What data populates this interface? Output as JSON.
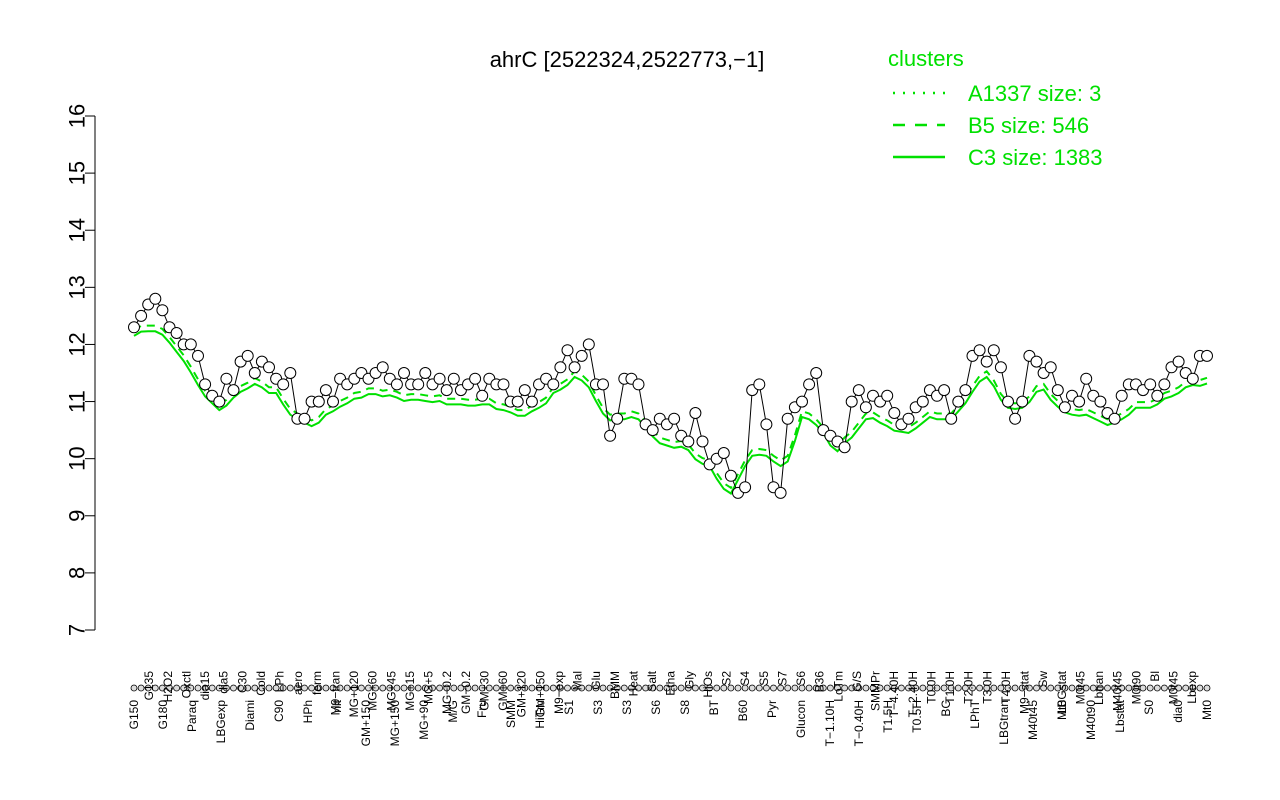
{
  "chart_data": {
    "type": "line",
    "title": "ahrC [2522324,2522773,−1]",
    "xlabel": "",
    "ylabel": "",
    "ylim": [
      7,
      16
    ],
    "yticks": [
      7,
      8,
      9,
      10,
      11,
      12,
      13,
      14,
      15,
      16
    ],
    "grid": false,
    "legend": {
      "title": "clusters",
      "placement": "top-right",
      "color": "#00e000",
      "entries": [
        {
          "label": "A1337 size: 3",
          "style": "dotted"
        },
        {
          "label": "B5 size: 546",
          "style": "dashed"
        },
        {
          "label": "C3 size: 1383",
          "style": "solid"
        }
      ]
    },
    "x_labels_upper": [
      "G135",
      "H2O2",
      "Oxctl",
      "dia15",
      "dia5",
      "C30",
      "Cold",
      "LPh",
      "aero",
      "ferm",
      "M9−tran",
      "MG+120",
      "MG+60",
      "MG+45",
      "MG+15",
      "MG+5",
      "MG−0.2",
      "GM−0.2",
      "GM+30",
      "GM+60",
      "GM+120",
      "GM+150",
      "M9−exp",
      "Mal",
      "Glu",
      "BMM",
      "Heat",
      "Salt",
      "Etha",
      "Gly",
      "HiOs",
      "S2",
      "S4",
      "S5",
      "S7",
      "S6",
      "B36",
      "LoTm",
      "G/S",
      "SMMPr",
      "T−4.40H",
      "T−2.40H",
      "T0.0H",
      "T1.0H",
      "T2.0H",
      "T3.0H",
      "T4.0H",
      "M9−stat",
      "Sw",
      "LBGstat",
      "M0t45",
      "Lbtran",
      "M40t45",
      "M0t90",
      "Bl",
      "M0t45",
      "Lbexp"
    ],
    "x_labels_lower": [
      "G150",
      "G180",
      "Paraq",
      "LBGexp",
      "Diami",
      "C90",
      "HPh",
      "nit",
      "GM+150",
      "MG+150",
      "MG+90",
      "M/G",
      "Fru",
      "SMM",
      "HiTm",
      "S1",
      "S3",
      "S3",
      "S6",
      "S8",
      "BT",
      "B60",
      "Pyr",
      "Glucon",
      "T−1.10H",
      "T−0.40H",
      "T1.5H",
      "T0.5H",
      "BC",
      "LPhT",
      "LBGtran",
      "M40t45",
      "Mt0",
      "M40t90",
      "Lbstat",
      "S0",
      "dia0",
      "Mt0"
    ],
    "series": [
      {
        "name": "",
        "style": "solid",
        "values": [
          12.3,
          12.5,
          12.7,
          12.8,
          12.6,
          12.3,
          12.2,
          12.0,
          12.0,
          11.8,
          11.3,
          11.1,
          11.0,
          11.4,
          11.2,
          11.7,
          11.8,
          11.5,
          11.7,
          11.6,
          11.4,
          11.3,
          11.5,
          10.7,
          10.7,
          11.0,
          11.0,
          11.2,
          11.0,
          11.4,
          11.3,
          11.4,
          11.5,
          11.4,
          11.5,
          11.6,
          11.4,
          11.3,
          11.5,
          11.3,
          11.3,
          11.5,
          11.3,
          11.4,
          11.2,
          11.4,
          11.2,
          11.3,
          11.4,
          11.1,
          11.4,
          11.3,
          11.3,
          11.0,
          11.0,
          11.2,
          11.0,
          11.3,
          11.4,
          11.3,
          11.6,
          11.9,
          11.6,
          11.8,
          12.0,
          11.3,
          11.3,
          10.4,
          10.7,
          11.4,
          11.4,
          11.3,
          10.6,
          10.5,
          10.7,
          10.6,
          10.7,
          10.4,
          10.3,
          10.8,
          10.3,
          9.9,
          10.0,
          10.1,
          9.7,
          9.4,
          9.5,
          11.2,
          11.3,
          10.6,
          9.5,
          9.4,
          10.7,
          10.9,
          11.0,
          11.3,
          11.5,
          10.5,
          10.4,
          10.3,
          10.2,
          11.0,
          11.2,
          10.9,
          11.1,
          11.0,
          11.1,
          10.8,
          10.6,
          10.7,
          10.9,
          11.0,
          11.2,
          11.1,
          11.2,
          10.7,
          11.0,
          11.2,
          11.8,
          11.9,
          11.7,
          11.9,
          11.6,
          11.0,
          10.7,
          11.0,
          11.8,
          11.7,
          11.5,
          11.6,
          11.2,
          10.9,
          11.1,
          11.0,
          11.4,
          11.1,
          11.0,
          10.8,
          10.7,
          11.1,
          11.3,
          11.3,
          11.2,
          11.3,
          11.1,
          11.3,
          11.6,
          11.7,
          11.5,
          11.4,
          11.8,
          11.8
        ]
      }
    ]
  }
}
